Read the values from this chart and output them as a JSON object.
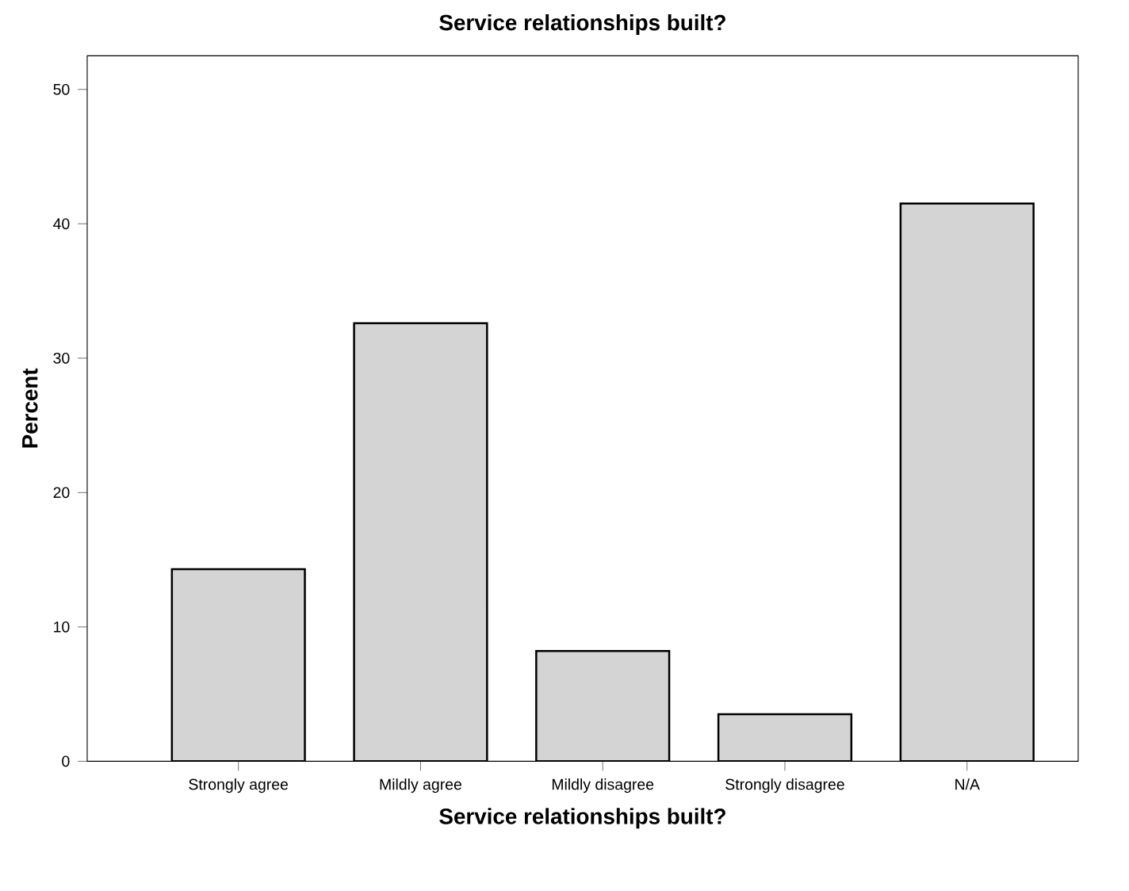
{
  "chart_data": {
    "type": "bar",
    "title": "Service relationships built?",
    "xlabel": "Service relationships built?",
    "ylabel": "Percent",
    "categories": [
      "Strongly agree",
      "Mildly agree",
      "Mildly disagree",
      "Strongly disagree",
      "N/A"
    ],
    "values": [
      14.3,
      32.6,
      8.2,
      3.5,
      41.5
    ],
    "color": "#d4d4d4",
    "ylim": [
      0,
      52.5
    ],
    "yticks": [
      0,
      10,
      20,
      30,
      40,
      50
    ],
    "grid": false
  }
}
